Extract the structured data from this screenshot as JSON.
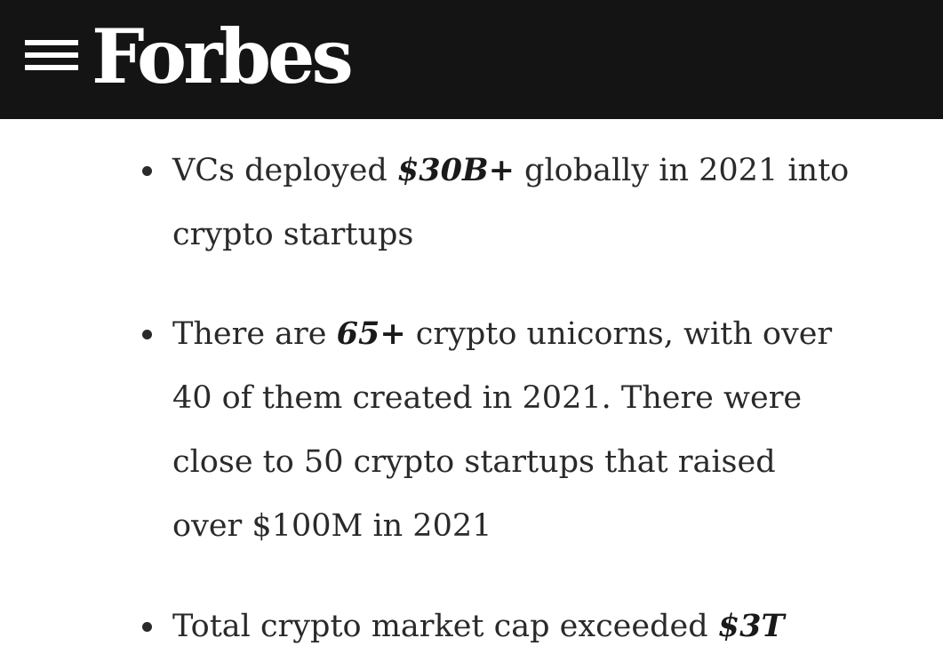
{
  "header": {
    "logo_text": "Forbes",
    "menu_icon": "hamburger-menu-icon",
    "background": "#141414"
  },
  "article": {
    "bullets": [
      {
        "before": "VCs deployed ",
        "highlight": "$30B+",
        "after": " globally in 2021 into crypto startups"
      },
      {
        "before": "There are ",
        "highlight": "65+",
        "after": " crypto unicorns, with over 40 of them created in 2021. There were close to 50 crypto startups that raised over $100M in 2021"
      },
      {
        "before": "Total crypto market cap exceeded ",
        "highlight": "$3T",
        "after": ""
      }
    ]
  }
}
